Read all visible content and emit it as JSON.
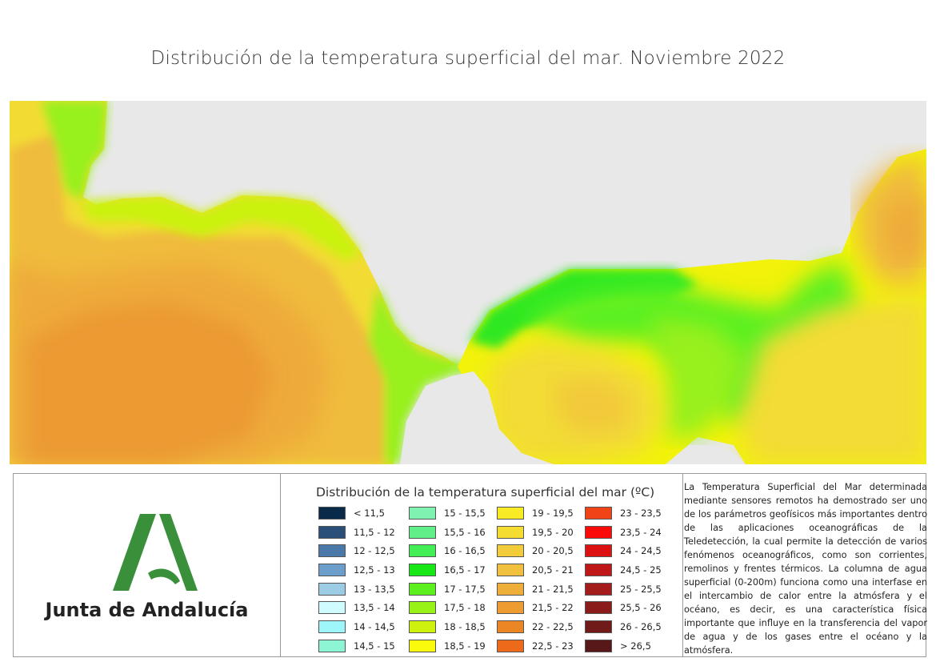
{
  "title": "Distribución de la temperatura superficial del mar. Noviembre 2022",
  "map": {
    "land_color": "#e8e8e8",
    "bands": [
      {
        "range": "16,5 - 17",
        "color": "#2ee824"
      },
      {
        "range": "17 - 17,5",
        "color": "#5af020"
      },
      {
        "range": "17,5 - 18",
        "color": "#98f01a"
      },
      {
        "range": "18 - 18,5",
        "color": "#caf210"
      },
      {
        "range": "18,5 - 19",
        "color": "#f2f20a"
      },
      {
        "range": "19 - 19,5",
        "color": "#f4ea26"
      },
      {
        "range": "19,5 - 20",
        "color": "#f2dc34"
      },
      {
        "range": "20 - 20,5",
        "color": "#f2c93a"
      },
      {
        "range": "20,5 - 21",
        "color": "#f0bc3e"
      },
      {
        "range": "21 - 21,5",
        "color": "#eeab3a"
      },
      {
        "range": "21,5 - 22",
        "color": "#ec9a32"
      }
    ]
  },
  "logo": {
    "text": "Junta de Andalucía",
    "brand_color": "#3a8f3a"
  },
  "legend": {
    "title": "Distribución de la temperatura superficial del mar (ºC)",
    "items": [
      {
        "label": "< 11,5",
        "color": "#0a2a4a"
      },
      {
        "label": "11,5 - 12",
        "color": "#2a4f78"
      },
      {
        "label": "12 - 12,5",
        "color": "#4a78a8"
      },
      {
        "label": "12,5 - 13",
        "color": "#6c9ecc"
      },
      {
        "label": "13 - 13,5",
        "color": "#9ccbe6"
      },
      {
        "label": "13,5 - 14",
        "color": "#cffcff"
      },
      {
        "label": "14 - 14,5",
        "color": "#9ef6fa"
      },
      {
        "label": "14,5 - 15",
        "color": "#8ef5d4"
      },
      {
        "label": "15 - 15,5",
        "color": "#7ff2b0"
      },
      {
        "label": "15,5 - 16",
        "color": "#60ef88"
      },
      {
        "label": "16 - 16,5",
        "color": "#44ee55"
      },
      {
        "label": "16,5 - 17",
        "color": "#18e818"
      },
      {
        "label": "17 - 17,5",
        "color": "#5ef01e"
      },
      {
        "label": "17,5 - 18",
        "color": "#98f218"
      },
      {
        "label": "18 - 18,5",
        "color": "#cef20e"
      },
      {
        "label": "18,5 - 19",
        "color": "#fafa0c"
      },
      {
        "label": "19 - 19,5",
        "color": "#f8ea24"
      },
      {
        "label": "19,5 - 20",
        "color": "#f4dc30"
      },
      {
        "label": "20 - 20,5",
        "color": "#f2cc3a"
      },
      {
        "label": "20,5 - 21",
        "color": "#f0c03e"
      },
      {
        "label": "21 - 21,5",
        "color": "#eeae3a"
      },
      {
        "label": "21,5 - 22",
        "color": "#ec9c30"
      },
      {
        "label": "22 - 22,5",
        "color": "#ea8624"
      },
      {
        "label": "22,5 - 23",
        "color": "#ec6a1a"
      },
      {
        "label": "23 - 23,5",
        "color": "#f04418"
      },
      {
        "label": "23,5 - 24",
        "color": "#fb0a0a"
      },
      {
        "label": "24 - 24,5",
        "color": "#dc1212"
      },
      {
        "label": "24,5 - 25",
        "color": "#c01818"
      },
      {
        "label": "25 - 25,5",
        "color": "#a41c1c"
      },
      {
        "label": "25,5 - 26",
        "color": "#8a1c1c"
      },
      {
        "label": "26 - 26,5",
        "color": "#701a1a"
      },
      {
        "label": "> 26,5",
        "color": "#561818"
      }
    ]
  },
  "description": "La Temperatura Superficial del Mar determinada mediante sensores remotos ha demostrado ser uno de los parámetros geofísicos más importantes dentro de las aplicaciones oceanográficas de la Teledetección, la cual permite la detección de varios fenómenos oceanográficos, como son corrientes, remolinos y frentes térmicos. La columna de agua superficial (0-200m) funciona como una interfase en el intercambio de calor entre la atmósfera y el océano, es decir, es una característica física importante que influye en la transferencia del vapor de agua y de los gases entre el océano y la atmósfera."
}
